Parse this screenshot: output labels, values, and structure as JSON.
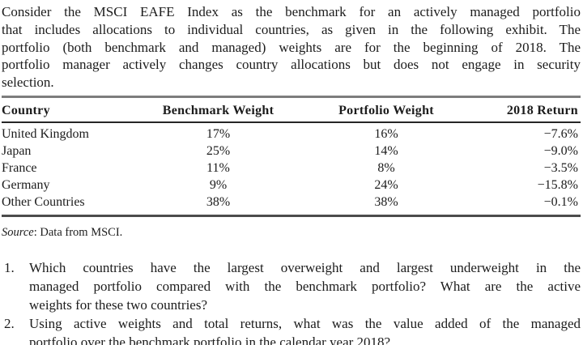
{
  "intro": {
    "lines": [
      "Consider the MSCI EAFE Index as the benchmark for an actively managed portfolio",
      "that includes allocations to individual countries, as given in the following exhibit. The",
      "portfolio (both benchmark and managed) weights are for the beginning of 2018. The",
      "portfolio manager actively changes country allocations but does not engage in security",
      "selection."
    ]
  },
  "table": {
    "columns": [
      "Country",
      "Benchmark Weight",
      "Portfolio Weight",
      "2018 Return"
    ],
    "rows": [
      {
        "country": "United Kingdom",
        "benchmark_weight": "17%",
        "portfolio_weight": "16%",
        "return_2018": "−7.6%"
      },
      {
        "country": "Japan",
        "benchmark_weight": "25%",
        "portfolio_weight": "14%",
        "return_2018": "−9.0%"
      },
      {
        "country": "France",
        "benchmark_weight": "11%",
        "portfolio_weight": "8%",
        "return_2018": "−3.5%"
      },
      {
        "country": "Germany",
        "benchmark_weight": "9%",
        "portfolio_weight": "24%",
        "return_2018": "−15.8%"
      },
      {
        "country": "Other Countries",
        "benchmark_weight": "38%",
        "portfolio_weight": "38%",
        "return_2018": "−0.1%"
      }
    ]
  },
  "source": {
    "label_italic": "Source",
    "rest": ": Data from MSCI."
  },
  "questions": [
    {
      "number": "1.",
      "lines": [
        "Which countries have the largest overweight and largest underweight in the",
        "managed portfolio compared with the benchmark portfolio? What are the active",
        "weights for these two countries?"
      ]
    },
    {
      "number": "2.",
      "lines": [
        "Using active weights and total returns, what was the value added of the managed",
        "portfolio over the benchmark portfolio in the calendar year 2018?"
      ]
    }
  ]
}
